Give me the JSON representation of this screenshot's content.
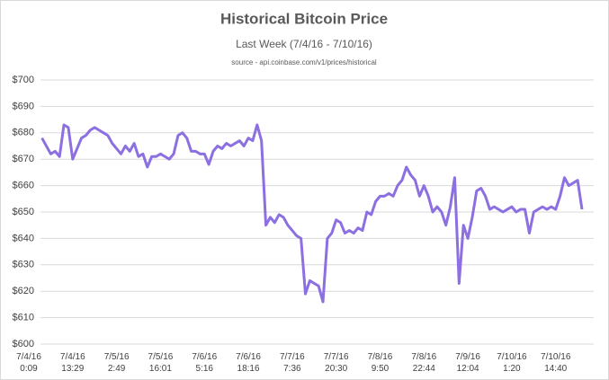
{
  "chart_data": {
    "type": "line",
    "title": "Historical Bitcoin Price",
    "subtitle": "Last Week (7/4/16 - 7/10/16)",
    "source": "source - api.coinbase.com/v1/prices/historical",
    "color": "#8c6fe0",
    "grid": true,
    "ylim": [
      600,
      700
    ],
    "yticks": [
      {
        "value": 600,
        "label": "$600"
      },
      {
        "value": 610,
        "label": "$610"
      },
      {
        "value": 620,
        "label": "$620"
      },
      {
        "value": 630,
        "label": "$630"
      },
      {
        "value": 640,
        "label": "$640"
      },
      {
        "value": 650,
        "label": "$650"
      },
      {
        "value": 660,
        "label": "$660"
      },
      {
        "value": 670,
        "label": "$670"
      },
      {
        "value": 680,
        "label": "$680"
      },
      {
        "value": 690,
        "label": "$690"
      },
      {
        "value": 700,
        "label": "$700"
      }
    ],
    "categories": [
      "7/4/16\n0:09",
      null,
      null,
      null,
      null,
      null,
      null,
      null,
      null,
      null,
      "7/4/16\n13:29",
      null,
      null,
      null,
      null,
      null,
      null,
      null,
      null,
      null,
      "7/5/16\n2:49",
      null,
      null,
      null,
      null,
      null,
      null,
      null,
      null,
      null,
      "7/5/16\n16:01",
      null,
      null,
      null,
      null,
      null,
      null,
      null,
      null,
      null,
      "7/6/16\n5:16",
      null,
      null,
      null,
      null,
      null,
      null,
      null,
      null,
      null,
      "7/6/16\n18:16",
      null,
      null,
      null,
      null,
      null,
      null,
      null,
      null,
      null,
      "7/7/16\n7:36",
      null,
      null,
      null,
      null,
      null,
      null,
      null,
      null,
      null,
      "7/7/16\n20:30",
      null,
      null,
      null,
      null,
      null,
      null,
      null,
      null,
      null,
      "7/8/16\n9:50",
      null,
      null,
      null,
      null,
      null,
      null,
      null,
      null,
      null,
      "7/8/16\n22:44",
      null,
      null,
      null,
      null,
      null,
      null,
      null,
      null,
      null,
      "7/9/16\n12:04",
      null,
      null,
      null,
      null,
      null,
      null,
      null,
      null,
      null,
      "7/10/16\n1:20",
      null,
      null,
      null,
      null,
      null,
      null,
      null,
      null,
      null,
      "7/10/16\n14:40",
      null,
      null,
      null,
      null,
      null,
      null
    ],
    "values": [
      null,
      null,
      null,
      678,
      675,
      672,
      673,
      671,
      683,
      682,
      670,
      674,
      678,
      679,
      681,
      682,
      681,
      680,
      679,
      676,
      674,
      672,
      675,
      673,
      676,
      671,
      672,
      667,
      671,
      671,
      672,
      671,
      670,
      672,
      679,
      680,
      678,
      673,
      673,
      672,
      672,
      668,
      673,
      675,
      674,
      676,
      675,
      676,
      677,
      675,
      678,
      677,
      683,
      677,
      645,
      648,
      646,
      649,
      648,
      645,
      643,
      641,
      640,
      619,
      624,
      623,
      622,
      616,
      640,
      642,
      647,
      646,
      642,
      643,
      642,
      644,
      643,
      650,
      649,
      654,
      656,
      656,
      657,
      656,
      660,
      662,
      667,
      664,
      662,
      656,
      660,
      656,
      650,
      652,
      650,
      645,
      652,
      663,
      623,
      645,
      640,
      648,
      658,
      659,
      656,
      651,
      652,
      651,
      650,
      651,
      652,
      650,
      651,
      651,
      642,
      650,
      651,
      652,
      651,
      652,
      651,
      656,
      663,
      660,
      661,
      662,
      651
    ]
  }
}
